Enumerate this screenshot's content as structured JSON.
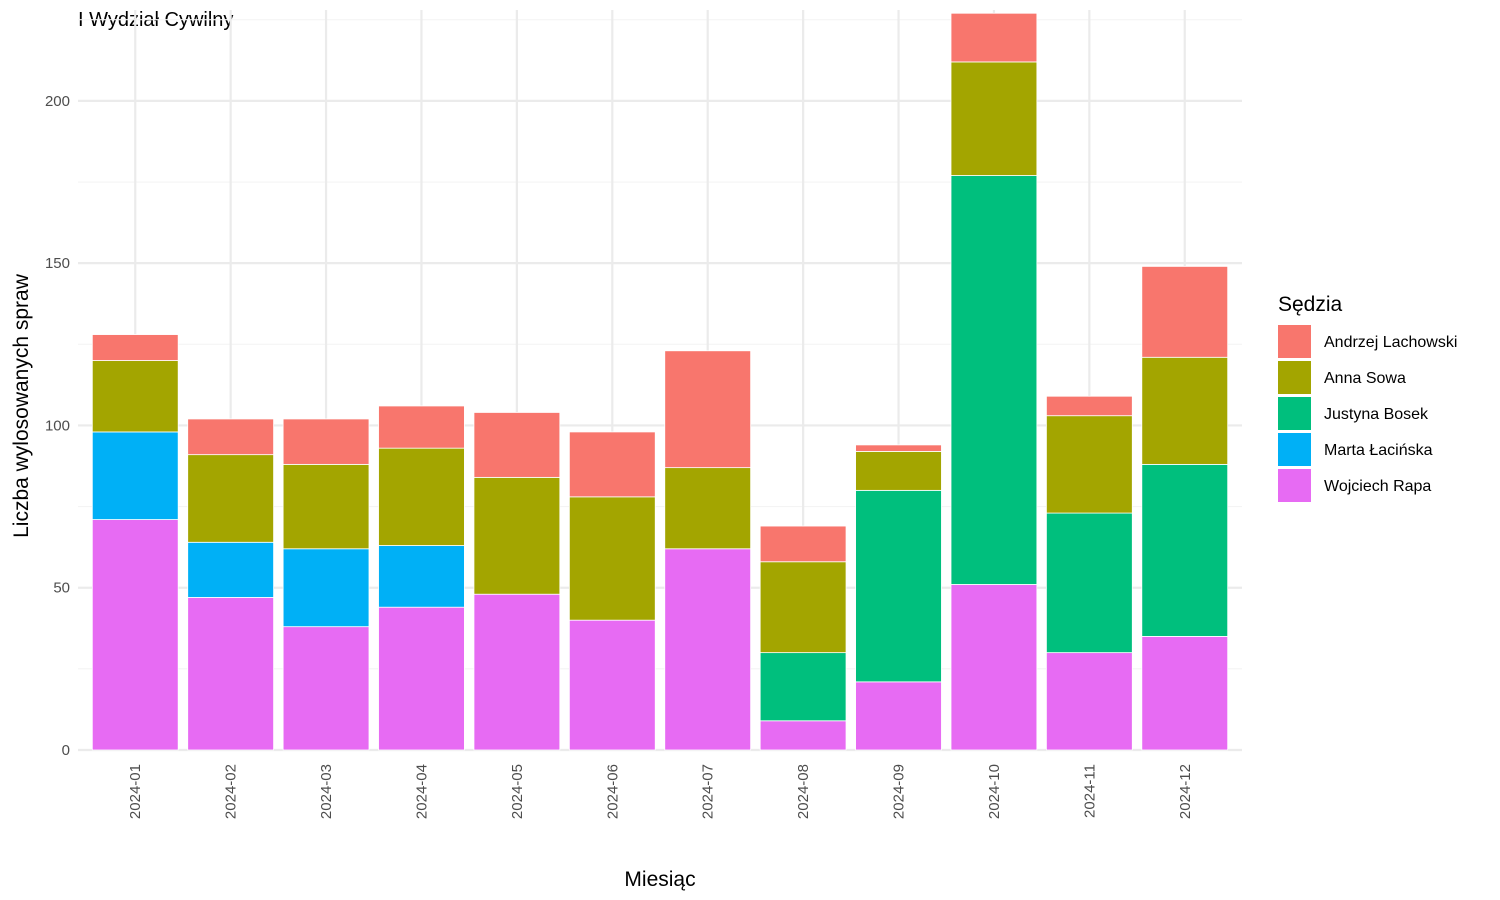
{
  "chart_data": {
    "type": "bar",
    "stacked": true,
    "title": "I Wydział Cywilny",
    "xlabel": "Miesiąc",
    "ylabel": "Liczba wylosowanych spraw",
    "ylim": [
      0,
      228
    ],
    "yticks": [
      0,
      50,
      100,
      150,
      200
    ],
    "grid": true,
    "legend": {
      "title": "Sędzia",
      "position": "right"
    },
    "categories": [
      "2024-01",
      "2024-02",
      "2024-03",
      "2024-04",
      "2024-05",
      "2024-06",
      "2024-07",
      "2024-08",
      "2024-09",
      "2024-10",
      "2024-11",
      "2024-12"
    ],
    "series": [
      {
        "name": "Andrzej Lachowski",
        "color": "#F8766D",
        "values": [
          8,
          11,
          14,
          13,
          20,
          20,
          36,
          11,
          2,
          15,
          6,
          28
        ]
      },
      {
        "name": "Anna Sowa",
        "color": "#A3A500",
        "values": [
          22,
          27,
          26,
          30,
          36,
          38,
          25,
          28,
          12,
          35,
          30,
          33
        ]
      },
      {
        "name": "Justyna Bosek",
        "color": "#00BF7D",
        "values": [
          0,
          0,
          0,
          0,
          0,
          0,
          0,
          21,
          59,
          126,
          43,
          53
        ]
      },
      {
        "name": "Marta Łacińska",
        "color": "#00B0F6",
        "values": [
          27,
          17,
          24,
          19,
          0,
          0,
          0,
          0,
          0,
          0,
          0,
          0
        ]
      },
      {
        "name": "Wojciech Rapa",
        "color": "#E76BF3",
        "values": [
          71,
          47,
          38,
          44,
          48,
          40,
          62,
          9,
          21,
          51,
          30,
          35
        ]
      }
    ]
  }
}
